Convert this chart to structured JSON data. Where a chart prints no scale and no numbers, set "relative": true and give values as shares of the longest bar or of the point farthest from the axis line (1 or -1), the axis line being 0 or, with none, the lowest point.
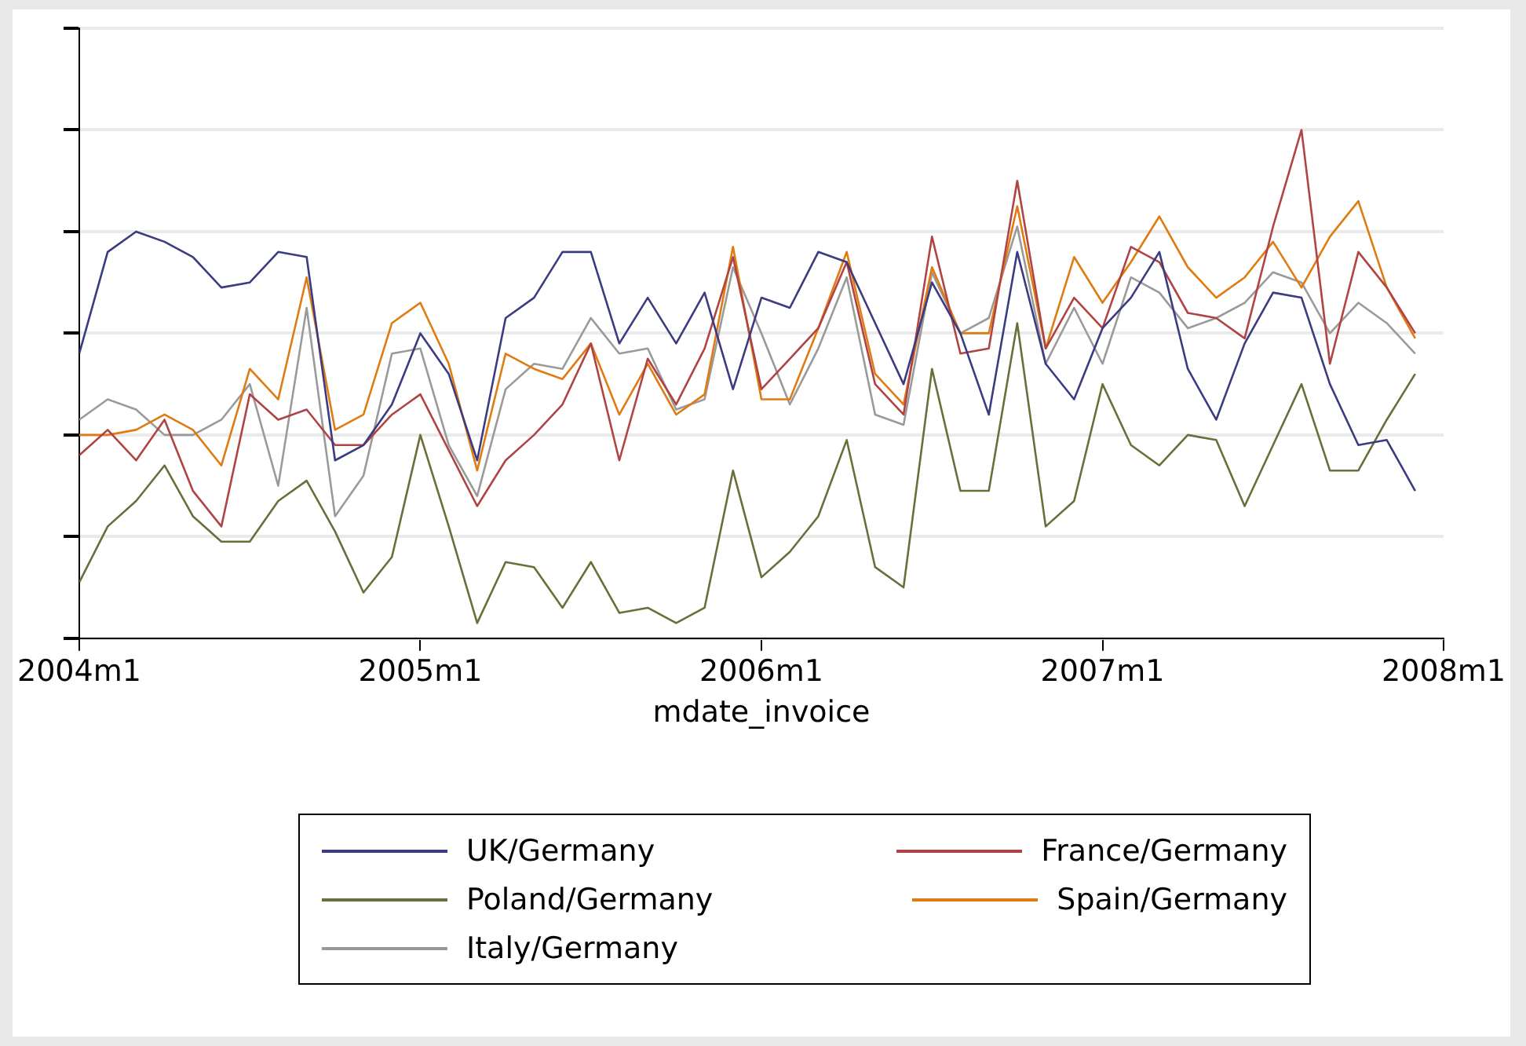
{
  "chart_data": {
    "type": "line",
    "xlabel": "mdate_invoice",
    "relative": true,
    "grid": "y",
    "legend": "bottom",
    "line_style": "solid",
    "marker": "none",
    "x": [
      "2004-01",
      "2004-02",
      "2004-03",
      "2004-04",
      "2004-05",
      "2004-06",
      "2004-07",
      "2004-08",
      "2004-09",
      "2004-10",
      "2004-11",
      "2004-12",
      "2005-01",
      "2005-02",
      "2005-03",
      "2005-04",
      "2005-05",
      "2005-06",
      "2005-07",
      "2005-08",
      "2005-09",
      "2005-10",
      "2005-11",
      "2005-12",
      "2006-01",
      "2006-02",
      "2006-03",
      "2006-04",
      "2006-05",
      "2006-06",
      "2006-07",
      "2006-08",
      "2006-09",
      "2006-10",
      "2006-11",
      "2006-12",
      "2007-01",
      "2007-02",
      "2007-03",
      "2007-04",
      "2007-05",
      "2007-06",
      "2007-07",
      "2007-08",
      "2007-09",
      "2007-10",
      "2007-11",
      "2007-12"
    ],
    "xlim": [
      "2004-01",
      "2008-01"
    ],
    "xticks": [
      {
        "value": "2004-01",
        "label": "2004m1"
      },
      {
        "value": "2005-01",
        "label": "2005m1"
      },
      {
        "value": "2006-01",
        "label": "2006m1"
      },
      {
        "value": "2007-01",
        "label": "2007m1"
      },
      {
        "value": "2008-01",
        "label": "2008m1"
      }
    ],
    "series": [
      {
        "name": "UK/Germany",
        "color": "#3b3b82",
        "values": [
          0.56,
          0.76,
          0.8,
          0.78,
          0.75,
          0.69,
          0.7,
          0.76,
          0.75,
          0.35,
          0.38,
          0.46,
          0.6,
          0.52,
          0.35,
          0.63,
          0.67,
          0.76,
          0.76,
          0.58,
          0.67,
          0.58,
          0.68,
          0.49,
          0.67,
          0.65,
          0.76,
          0.74,
          0.62,
          0.5,
          0.7,
          0.6,
          0.44,
          0.76,
          0.54,
          0.47,
          0.61,
          0.67,
          0.76,
          0.53,
          0.43,
          0.58,
          0.68,
          0.67,
          0.5,
          0.38,
          0.39,
          0.29
        ]
      },
      {
        "name": "France/Germany",
        "color": "#b04444",
        "values": [
          0.36,
          0.41,
          0.35,
          0.43,
          0.29,
          0.22,
          0.48,
          0.43,
          0.45,
          0.38,
          0.38,
          0.44,
          0.48,
          0.37,
          0.26,
          0.35,
          0.4,
          0.46,
          0.58,
          0.35,
          0.55,
          0.46,
          0.57,
          0.75,
          0.49,
          0.55,
          0.61,
          0.74,
          0.5,
          0.44,
          0.79,
          0.56,
          0.57,
          0.9,
          0.57,
          0.67,
          0.61,
          0.77,
          0.74,
          0.64,
          0.63,
          0.59,
          0.81,
          1,
          0.54,
          0.76,
          0.69,
          0.6
        ]
      },
      {
        "name": "Poland/Germany",
        "color": "#6b6e38",
        "values": [
          0.11,
          0.22,
          0.27,
          0.34,
          0.24,
          0.19,
          0.19,
          0.27,
          0.31,
          0.21,
          0.09,
          0.16,
          0.4,
          0.22,
          0.03,
          0.15,
          0.14,
          0.06,
          0.15,
          0.05,
          0.06,
          0.03,
          0.06,
          0.33,
          0.12,
          0.17,
          0.24,
          0.39,
          0.14,
          0.1,
          0.53,
          0.29,
          0.29,
          0.62,
          0.22,
          0.27,
          0.5,
          0.38,
          0.34,
          0.4,
          0.39,
          0.26,
          0.38,
          0.5,
          0.33,
          0.33,
          0.43,
          0.52
        ]
      },
      {
        "name": "Spain/Germany",
        "color": "#e07b12",
        "values": [
          0.4,
          0.4,
          0.41,
          0.44,
          0.41,
          0.34,
          0.53,
          0.47,
          0.71,
          0.41,
          0.44,
          0.62,
          0.66,
          0.54,
          0.33,
          0.56,
          0.53,
          0.51,
          0.58,
          0.44,
          0.54,
          0.44,
          0.48,
          0.77,
          0.47,
          0.47,
          0.61,
          0.76,
          0.52,
          0.46,
          0.73,
          0.6,
          0.6,
          0.85,
          0.57,
          0.75,
          0.66,
          0.74,
          0.83,
          0.73,
          0.67,
          0.71,
          0.78,
          0.69,
          0.79,
          0.86,
          0.69,
          0.59
        ]
      },
      {
        "name": "Italy/Germany",
        "color": "#9a9a9a",
        "values": [
          0.43,
          0.47,
          0.45,
          0.4,
          0.4,
          0.43,
          0.5,
          0.3,
          0.65,
          0.24,
          0.32,
          0.56,
          0.57,
          0.38,
          0.28,
          0.49,
          0.54,
          0.53,
          0.63,
          0.56,
          0.57,
          0.45,
          0.47,
          0.73,
          0.6,
          0.46,
          0.57,
          0.71,
          0.44,
          0.42,
          0.72,
          0.6,
          0.63,
          0.81,
          0.54,
          0.65,
          0.54,
          0.71,
          0.68,
          0.61,
          0.63,
          0.66,
          0.72,
          0.7,
          0.6,
          0.66,
          0.62,
          0.56
        ]
      }
    ]
  }
}
